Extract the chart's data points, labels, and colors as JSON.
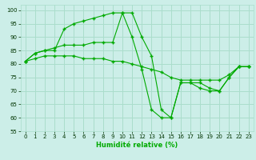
{
  "xlabel": "Humidité relative (%)",
  "bg_color": "#cceee8",
  "grid_color": "#aaddcc",
  "line_color": "#00aa00",
  "xlim": [
    -0.5,
    23.5
  ],
  "ylim": [
    55,
    102
  ],
  "xticks": [
    0,
    1,
    2,
    3,
    4,
    5,
    6,
    7,
    8,
    9,
    10,
    11,
    12,
    13,
    14,
    15,
    16,
    17,
    18,
    19,
    20,
    21,
    22,
    23
  ],
  "yticks": [
    55,
    60,
    65,
    70,
    75,
    80,
    85,
    90,
    95,
    100
  ],
  "line1_x": [
    0,
    1,
    2,
    3,
    4,
    5,
    6,
    7,
    8,
    9,
    10,
    11,
    12,
    13,
    14,
    15,
    16,
    17,
    18,
    19,
    20,
    21,
    22,
    23
  ],
  "line1_y": [
    81,
    84,
    85,
    86,
    87,
    87,
    87,
    88,
    88,
    88,
    99,
    99,
    90,
    83,
    63,
    60,
    73,
    73,
    73,
    71,
    70,
    75,
    79,
    79
  ],
  "line2_x": [
    0,
    1,
    2,
    3,
    4,
    5,
    6,
    7,
    8,
    9,
    10,
    11,
    12,
    13,
    14,
    15,
    16,
    17,
    18,
    19,
    20,
    21,
    22,
    23
  ],
  "line2_y": [
    81,
    84,
    85,
    85,
    93,
    95,
    96,
    97,
    98,
    99,
    99,
    90,
    78,
    63,
    60,
    60,
    73,
    73,
    71,
    70,
    70,
    75,
    79,
    79
  ],
  "line3_x": [
    0,
    1,
    2,
    3,
    4,
    5,
    6,
    7,
    8,
    9,
    10,
    11,
    12,
    13,
    14,
    15,
    16,
    17,
    18,
    19,
    20,
    21,
    22,
    23
  ],
  "line3_y": [
    81,
    82,
    83,
    83,
    83,
    83,
    82,
    82,
    82,
    81,
    81,
    80,
    79,
    78,
    77,
    75,
    74,
    74,
    74,
    74,
    74,
    76,
    79,
    79
  ]
}
